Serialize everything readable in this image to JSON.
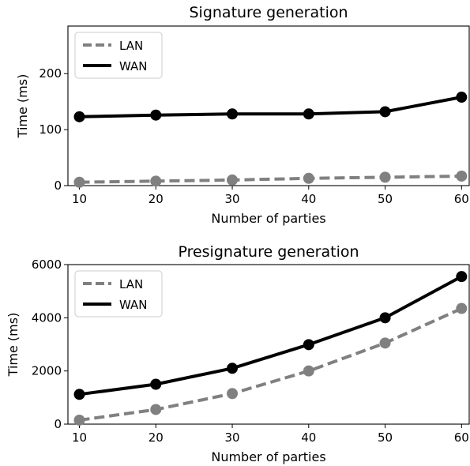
{
  "chart_data": [
    {
      "type": "line",
      "title": "Signature generation",
      "xlabel": "Number of parties",
      "ylabel": "Time (ms)",
      "x": [
        10,
        20,
        30,
        40,
        50,
        60
      ],
      "xlim": [
        8.5,
        61
      ],
      "ylim": [
        0,
        285
      ],
      "xticks": [
        10,
        20,
        30,
        40,
        50,
        60
      ],
      "yticks": [
        0,
        100,
        200
      ],
      "legend": "top-left",
      "grid": false,
      "series": [
        {
          "name": "LAN",
          "values": [
            6,
            8,
            10,
            13,
            15,
            17
          ],
          "color": "#808080",
          "style": "dashed"
        },
        {
          "name": "WAN",
          "values": [
            123,
            126,
            128,
            128,
            132,
            158
          ],
          "color": "#000000",
          "style": "solid"
        }
      ]
    },
    {
      "type": "line",
      "title": "Presignature generation",
      "xlabel": "Number of parties",
      "ylabel": "Time (ms)",
      "x": [
        10,
        20,
        30,
        40,
        50,
        60
      ],
      "xlim": [
        8.5,
        61
      ],
      "ylim": [
        0,
        6000
      ],
      "xticks": [
        10,
        20,
        30,
        40,
        50,
        60
      ],
      "yticks": [
        0,
        2000,
        4000,
        6000
      ],
      "legend": "top-left",
      "grid": false,
      "series": [
        {
          "name": "LAN",
          "values": [
            150,
            550,
            1150,
            2000,
            3050,
            4350
          ],
          "color": "#808080",
          "style": "dashed"
        },
        {
          "name": "WAN",
          "values": [
            1120,
            1500,
            2100,
            2990,
            4000,
            5550
          ],
          "color": "#000000",
          "style": "solid"
        }
      ]
    }
  ]
}
